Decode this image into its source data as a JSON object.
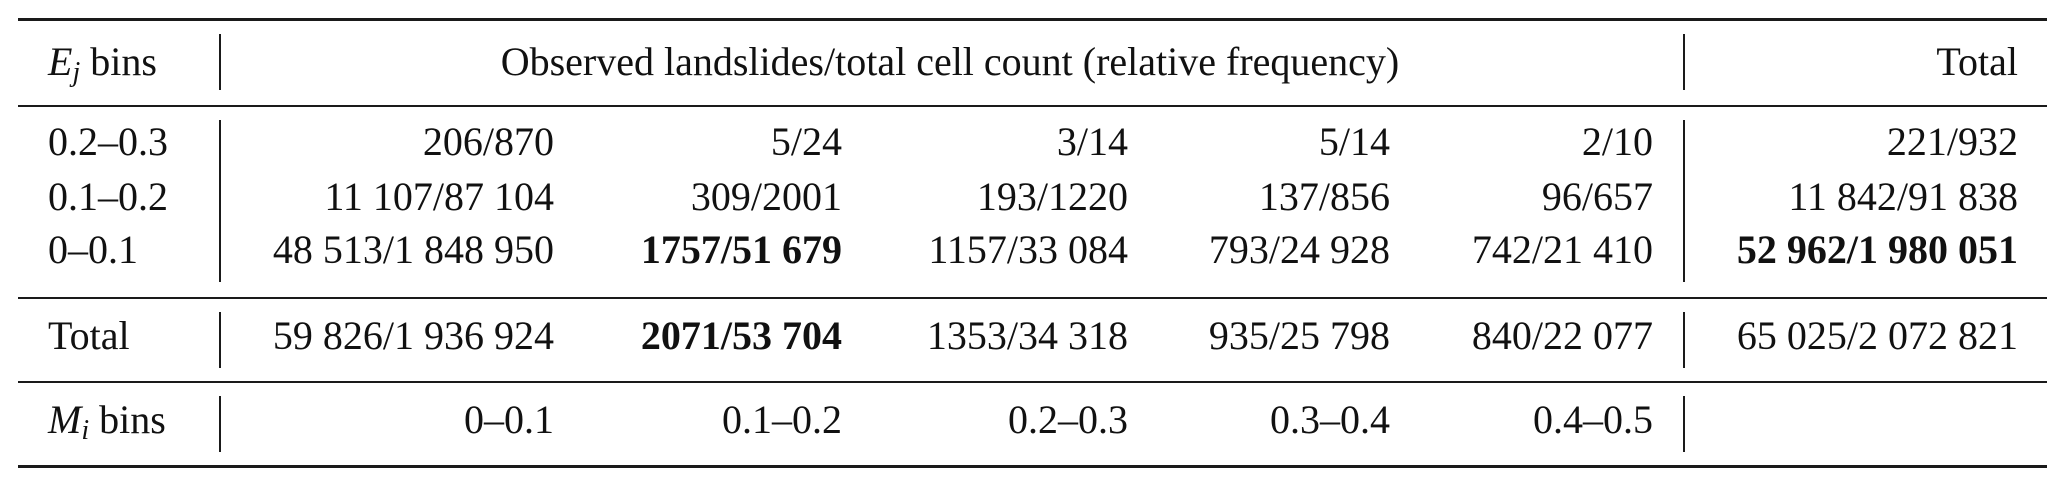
{
  "header": {
    "row_label_var": "E",
    "row_label_sub": "j",
    "row_label_suffix": " bins",
    "span_title": "Observed landslides/total cell count (relative frequency)",
    "total_title": "Total"
  },
  "rows": [
    {
      "label": "0.2–0.3",
      "cells": [
        "206/870",
        "5/24",
        "3/14",
        "5/14",
        "2/10"
      ],
      "total": "221/932"
    },
    {
      "label": "0.1–0.2",
      "cells": [
        "11 107/87 104",
        "309/2001",
        "193/1220",
        "137/856",
        "96/657"
      ],
      "total": "11 842/91 838"
    },
    {
      "label": "0–0.1",
      "cells": [
        "48 513/1 848 950",
        "1757/51 679",
        "1157/33 084",
        "793/24 928",
        "742/21 410"
      ],
      "total": "52 962/1 980 051"
    }
  ],
  "total_row": {
    "label": "Total",
    "cells": [
      "59 826/1 936 924",
      "2071/53 704",
      "1353/34 318",
      "935/25 798",
      "840/22 077"
    ],
    "total": "65 025/2 072 821"
  },
  "mi_row": {
    "label_var": "M",
    "label_sub": "i",
    "label_suffix": " bins",
    "cells": [
      "0–0.1",
      "0.1–0.2",
      "0.2–0.3",
      "0.3–0.4",
      "0.4–0.5"
    ]
  }
}
